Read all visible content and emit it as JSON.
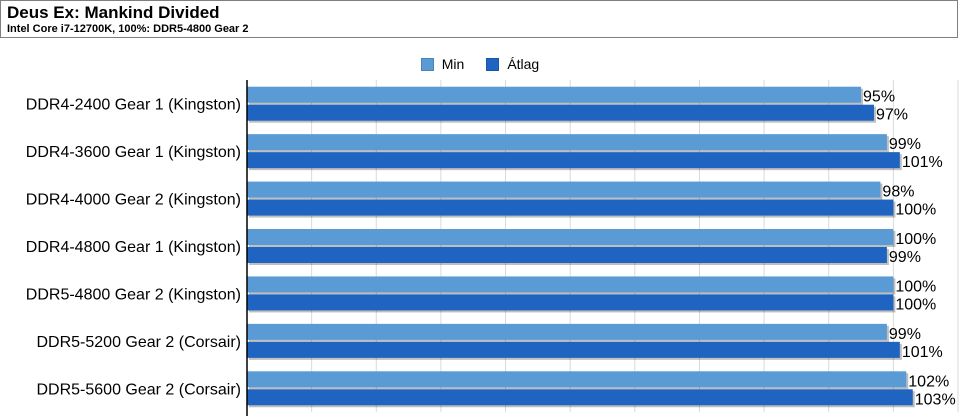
{
  "header": {
    "title": "Deus Ex: Mankind Divided",
    "subtitle": "Intel Core i7-12700K, 100%: DDR5-4800 Gear 2"
  },
  "colors": {
    "min": "#5b9bd5",
    "avg": "#1f64c0",
    "grid": "#d9d9d9",
    "axis": "#000000"
  },
  "chart_data": {
    "type": "bar",
    "orientation": "horizontal",
    "title": "Deus Ex: Mankind Divided",
    "subtitle": "Intel Core i7-12700K, 100%: DDR5-4800 Gear 2",
    "categories": [
      "DDR4-2400 Gear 1 (Kingston)",
      "DDR4-3600 Gear 1 (Kingston)",
      "DDR4-4000 Gear 2 (Kingston)",
      "DDR4-4800 Gear 1 (Kingston)",
      "DDR5-4800 Gear 2 (Kingston)",
      "DDR5-5200 Gear 2 (Corsair)",
      "DDR5-5600 Gear 2 (Corsair)"
    ],
    "series": [
      {
        "name": "Min",
        "values": [
          95,
          99,
          98,
          100,
          100,
          99,
          102
        ]
      },
      {
        "name": "Átlag",
        "values": [
          97,
          101,
          100,
          99,
          100,
          101,
          103
        ]
      }
    ],
    "value_suffix": "%",
    "xlim": [
      0,
      110
    ],
    "grid": true,
    "legend_position": "top-center"
  }
}
